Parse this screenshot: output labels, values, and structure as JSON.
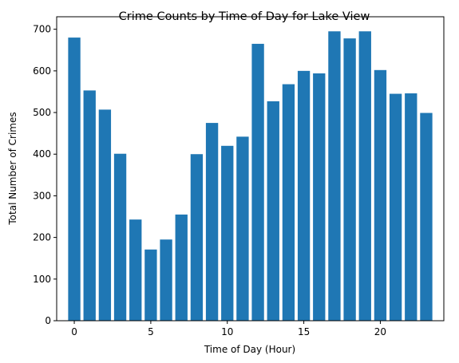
{
  "chart_data": {
    "type": "bar",
    "title": "Crime Counts by Time of Day for Lake View",
    "xlabel": "Time of Day (Hour)",
    "ylabel": "Total Number of Crimes",
    "x": [
      0,
      1,
      2,
      3,
      4,
      5,
      6,
      7,
      8,
      9,
      10,
      11,
      12,
      13,
      14,
      15,
      16,
      17,
      18,
      19,
      20,
      21,
      22,
      23
    ],
    "values": [
      680,
      553,
      507,
      401,
      243,
      171,
      195,
      255,
      400,
      475,
      420,
      442,
      665,
      527,
      568,
      600,
      594,
      695,
      678,
      695,
      602,
      545,
      546,
      499
    ],
    "xlim": [
      -1.15,
      24.15
    ],
    "ylim": [
      0,
      730
    ],
    "xticks": [
      0,
      5,
      10,
      15,
      20
    ],
    "yticks": [
      0,
      100,
      200,
      300,
      400,
      500,
      600,
      700
    ],
    "bar_color": "#1f77b4",
    "grid": false,
    "legend": false
  }
}
